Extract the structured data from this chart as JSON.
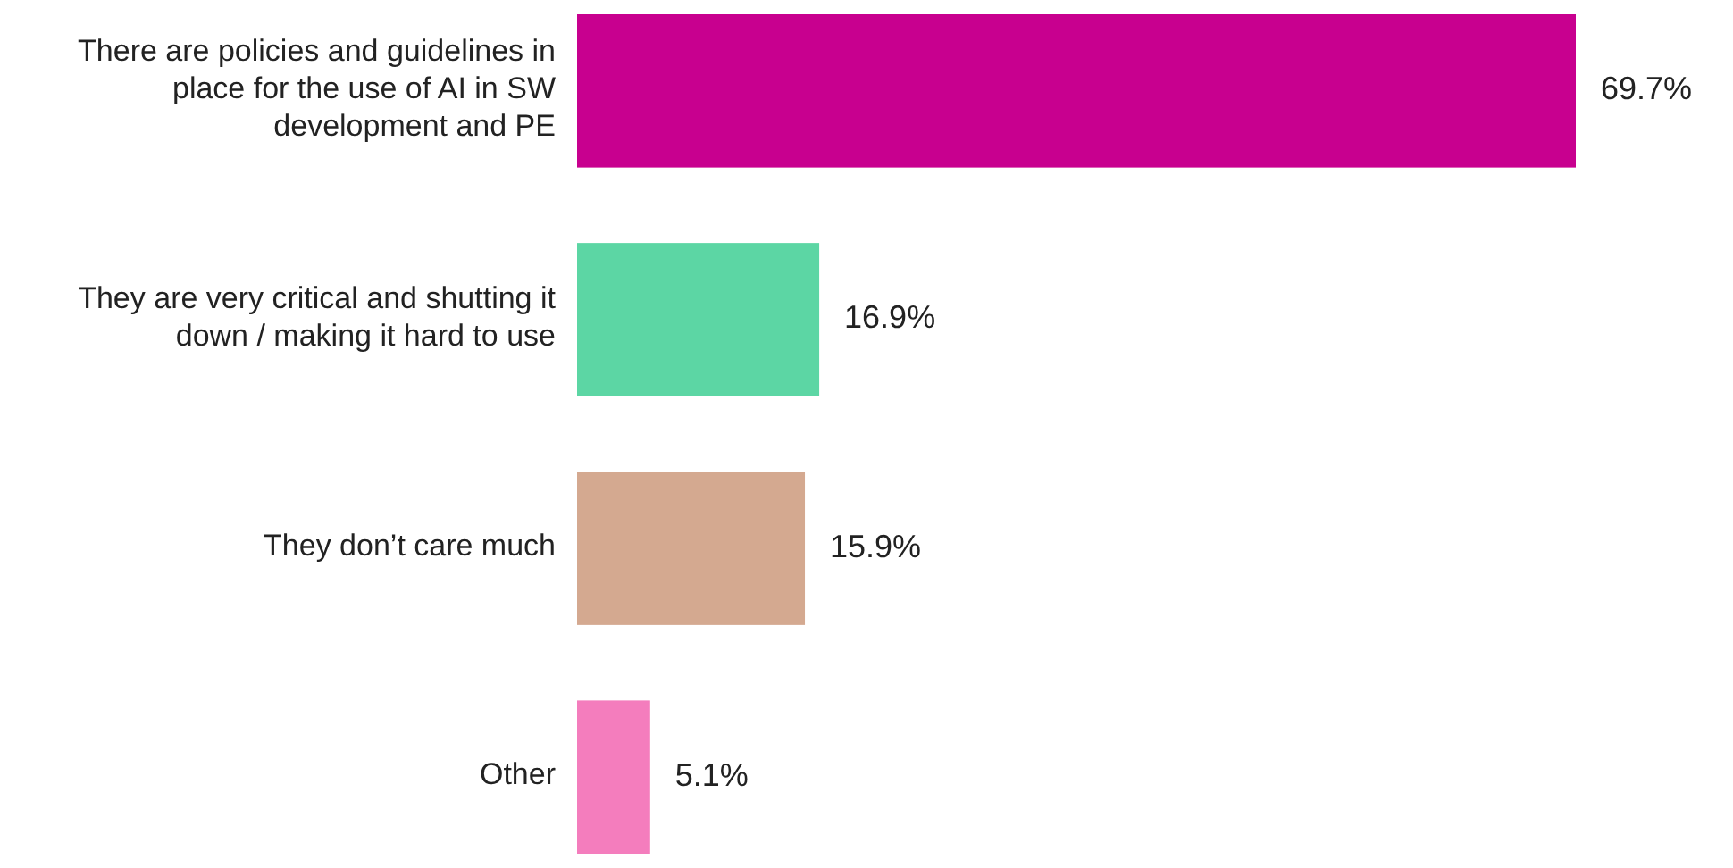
{
  "chart_data": {
    "type": "bar",
    "orientation": "horizontal",
    "categories": [
      "There are policies and guidelines in place for the use of AI in SW development and PE",
      "They are very critical and shutting it down / making it hard to use",
      "They don’t care much",
      "Other"
    ],
    "values": [
      69.7,
      16.9,
      15.9,
      5.1
    ],
    "colors": [
      "#c8008f",
      "#5cd6a4",
      "#d4a990",
      "#f47dbd"
    ],
    "value_labels": [
      "69.7%",
      "16.9%",
      "15.9%",
      "5.1%"
    ]
  }
}
